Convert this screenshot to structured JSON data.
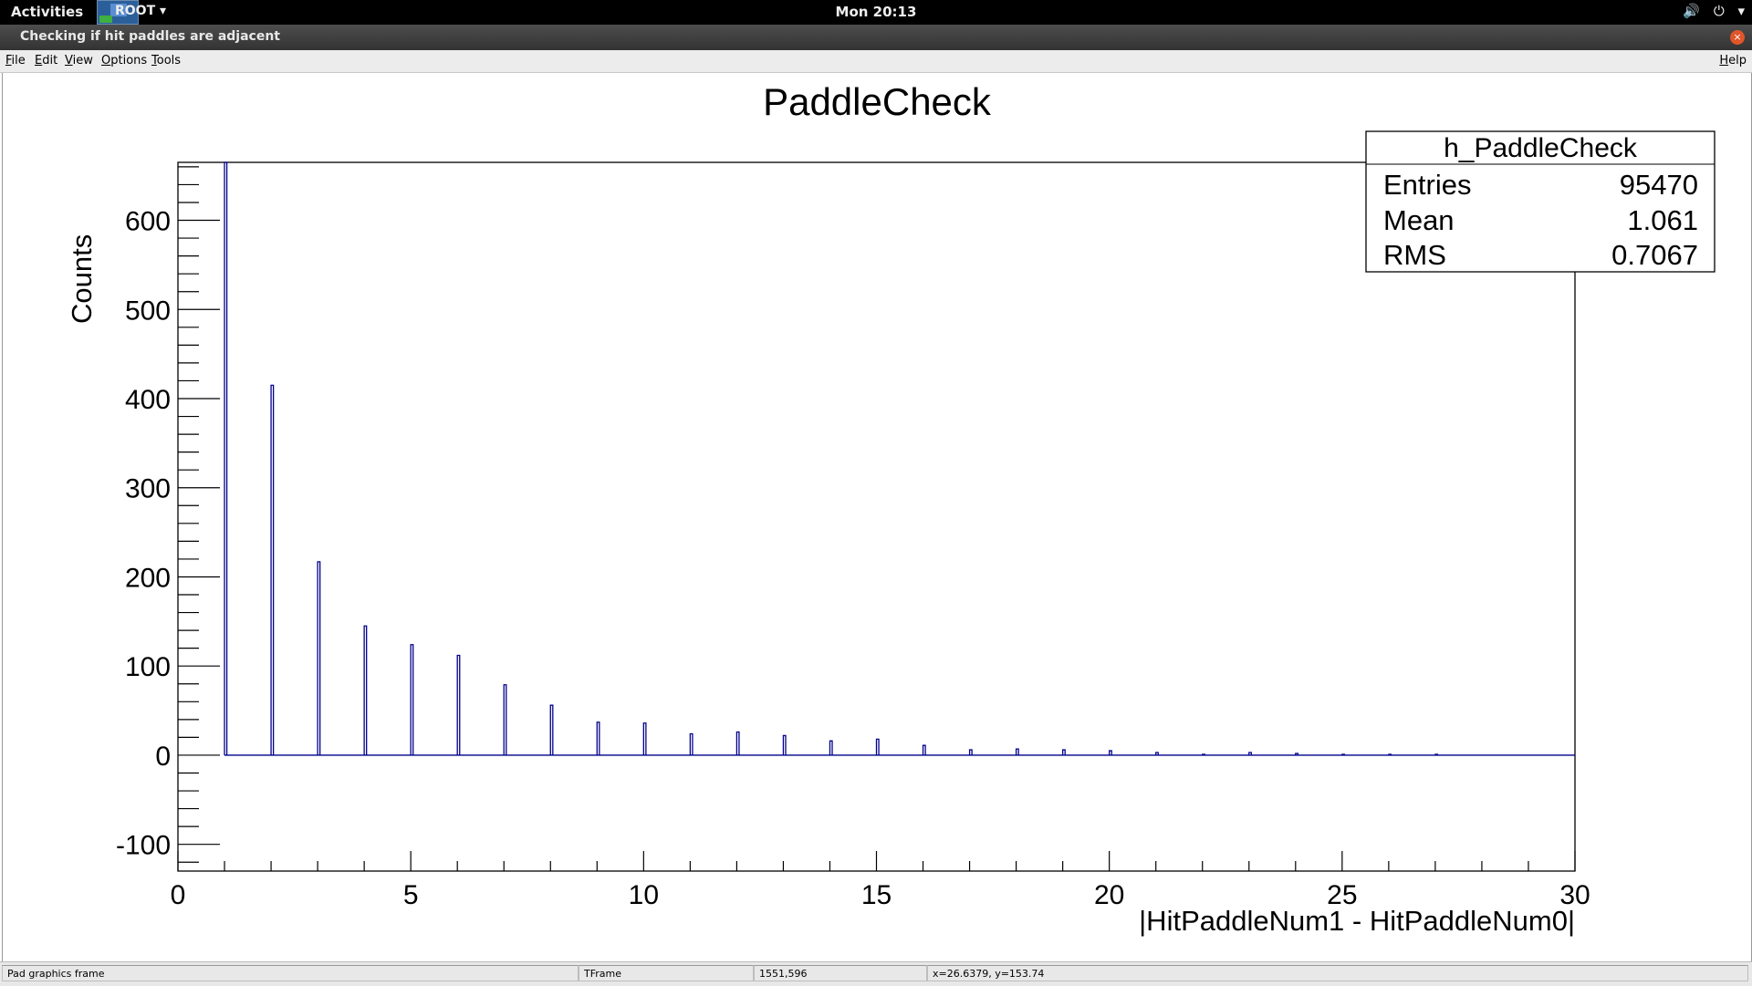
{
  "desktop": {
    "activities_label": "Activities",
    "app_label": "ROOT ▾",
    "clock": "Mon 20:13",
    "tray_icons": [
      "volume-icon",
      "power-icon",
      "chevron-down-icon"
    ]
  },
  "window": {
    "title": "Checking if hit paddles are adjacent",
    "close_glyph": "×"
  },
  "menubar": {
    "items": [
      {
        "label": "File",
        "underline": "F",
        "rest": "ile"
      },
      {
        "label": "Edit",
        "underline": "E",
        "rest": "dit"
      },
      {
        "label": "View",
        "underline": "V",
        "rest": "iew"
      },
      {
        "label": "Options",
        "underline": "O",
        "rest": "ptions"
      },
      {
        "label": "Tools",
        "underline": "T",
        "rest": "ools"
      }
    ],
    "help": {
      "label": "Help",
      "underline": "H",
      "rest": "elp"
    }
  },
  "chart_data": {
    "type": "bar",
    "title": "PaddleCheck",
    "xlabel": "|HitPaddleNum1 - HitPaddleNum0|",
    "ylabel": "Counts",
    "xlim": [
      0,
      30
    ],
    "ylim": [
      -130,
      665
    ],
    "x_ticks": [
      0,
      5,
      10,
      15,
      20,
      25,
      30
    ],
    "y_ticks": [
      -100,
      0,
      100,
      200,
      300,
      400,
      500,
      600
    ],
    "line_color": "#00008b",
    "stats": {
      "name": "h_PaddleCheck",
      "rows": [
        {
          "label": "Entries",
          "value": "95470"
        },
        {
          "label": "Mean",
          "value": "1.061"
        },
        {
          "label": "RMS",
          "value": "0.7067"
        }
      ]
    },
    "bins": [
      {
        "x": 1,
        "y": 665
      },
      {
        "x": 2,
        "y": 415
      },
      {
        "x": 3,
        "y": 217
      },
      {
        "x": 4,
        "y": 145
      },
      {
        "x": 5,
        "y": 124
      },
      {
        "x": 6,
        "y": 112
      },
      {
        "x": 7,
        "y": 79
      },
      {
        "x": 8,
        "y": 56
      },
      {
        "x": 9,
        "y": 37
      },
      {
        "x": 10,
        "y": 36
      },
      {
        "x": 11,
        "y": 24
      },
      {
        "x": 12,
        "y": 26
      },
      {
        "x": 13,
        "y": 22
      },
      {
        "x": 14,
        "y": 16
      },
      {
        "x": 15,
        "y": 18
      },
      {
        "x": 16,
        "y": 11
      },
      {
        "x": 17,
        "y": 6
      },
      {
        "x": 18,
        "y": 7
      },
      {
        "x": 19,
        "y": 6
      },
      {
        "x": 20,
        "y": 5
      },
      {
        "x": 21,
        "y": 3
      },
      {
        "x": 22,
        "y": 1
      },
      {
        "x": 23,
        "y": 3
      },
      {
        "x": 24,
        "y": 2
      },
      {
        "x": 25,
        "y": 1
      },
      {
        "x": 26,
        "y": 1
      },
      {
        "x": 27,
        "y": 1
      }
    ]
  },
  "statusbar": {
    "object_info": "Pad graphics frame",
    "class_name": "TFrame",
    "pixel_pos": "1551,596",
    "coord_readout": "x=26.6379, y=153.74"
  }
}
